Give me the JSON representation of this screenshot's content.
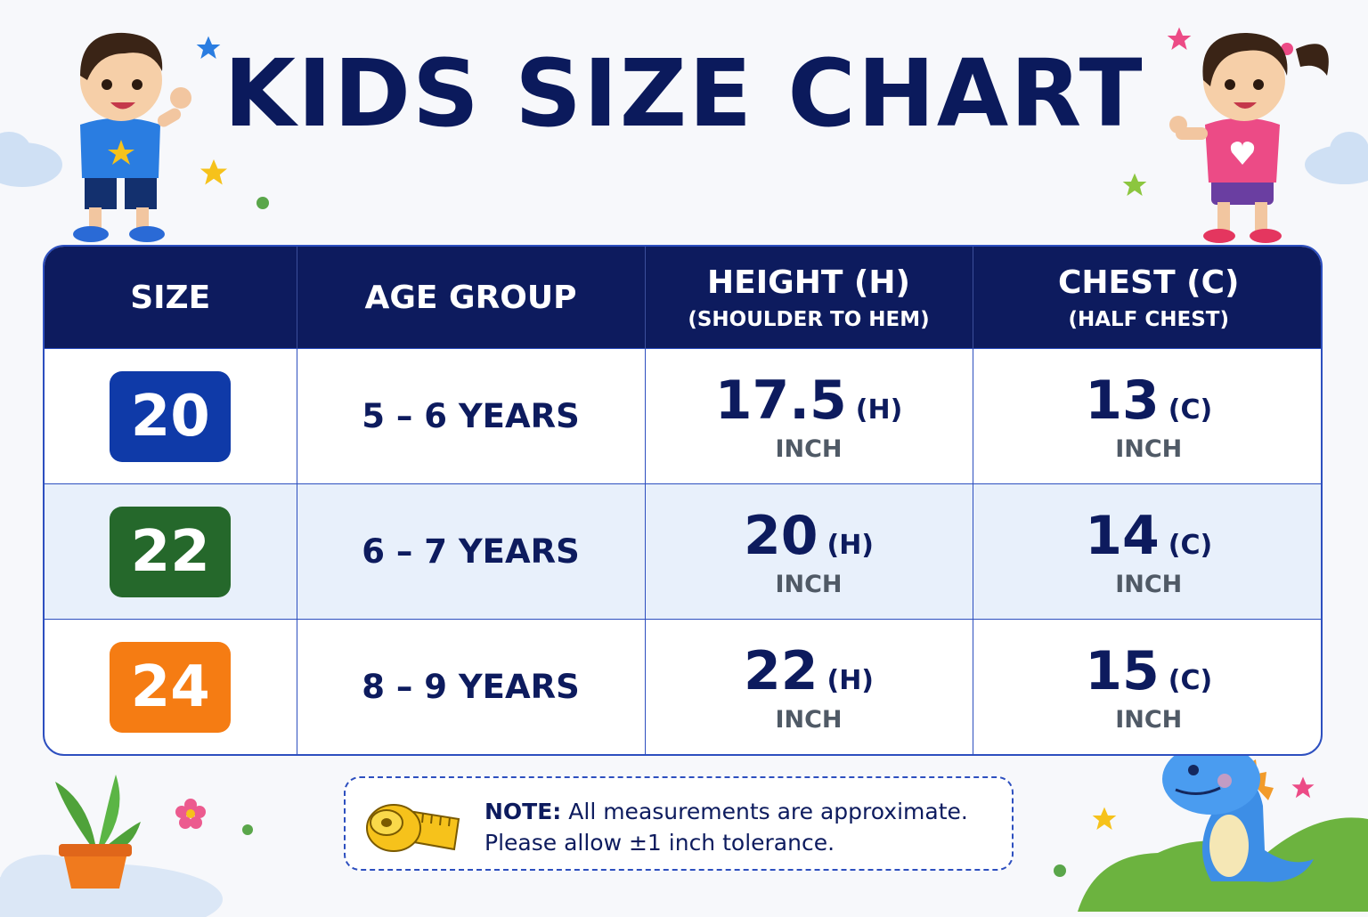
{
  "title": "KIDS SIZE CHART",
  "columns": [
    {
      "label": "SIZE",
      "sub": ""
    },
    {
      "label": "AGE GROUP",
      "sub": ""
    },
    {
      "label": "HEIGHT (H)",
      "sub": "(SHOULDER TO HEM)"
    },
    {
      "label": "CHEST (C)",
      "sub": "(HALF CHEST)"
    }
  ],
  "rows": [
    {
      "size": "20",
      "size_color": "#0f3aa8",
      "age": "5 – 6 YEARS",
      "height": "17.5",
      "height_tag": "(H)",
      "height_unit": "INCH",
      "chest": "13",
      "chest_tag": "(C)",
      "chest_unit": "INCH"
    },
    {
      "size": "22",
      "size_color": "#25682b",
      "age": "6 – 7 YEARS",
      "height": "20",
      "height_tag": "(H)",
      "height_unit": "INCH",
      "chest": "14",
      "chest_tag": "(C)",
      "chest_unit": "INCH"
    },
    {
      "size": "24",
      "size_color": "#f57c13",
      "age": "8 – 9 YEARS",
      "height": "22",
      "height_tag": "(H)",
      "height_unit": "INCH",
      "chest": "15",
      "chest_tag": "(C)",
      "chest_unit": "INCH"
    }
  ],
  "note": {
    "label": "NOTE:",
    "line1": "All measurements are approximate.",
    "line2": "Please allow ±1 inch tolerance."
  },
  "colors": {
    "navy": "#0d1b5e",
    "border": "#2d4fbf",
    "alt_row": "#e8f0fb"
  },
  "icons": [
    "boy-illustration",
    "girl-illustration",
    "tape-measure-icon",
    "plant-pot-illustration",
    "dinosaur-illustration",
    "star-icon",
    "cloud-icon",
    "flower-icon"
  ]
}
